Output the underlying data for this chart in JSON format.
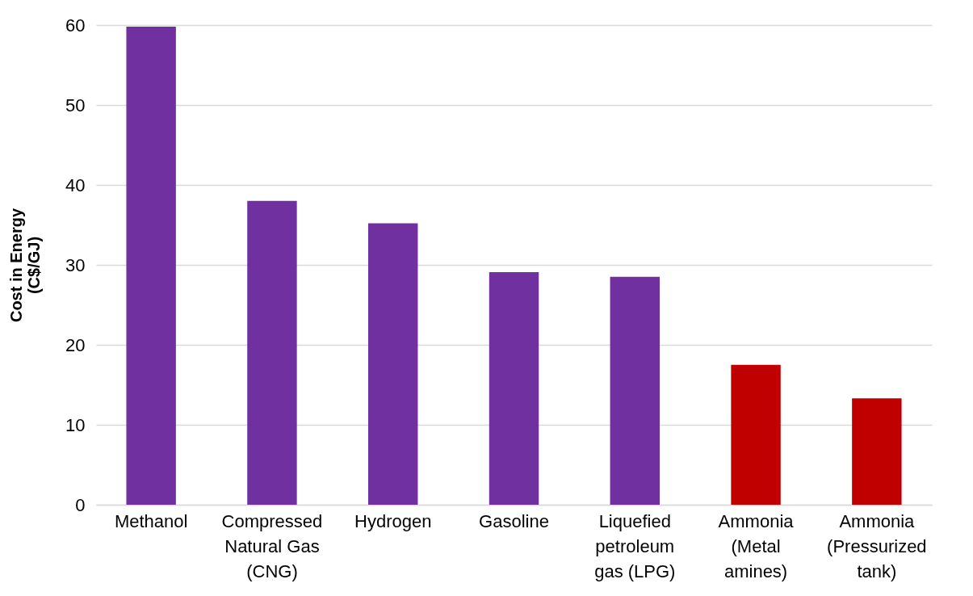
{
  "chart_data": {
    "type": "bar",
    "ylabel": "Cost in Energy (C$/GJ)",
    "categories": [
      "Methanol",
      "Compressed Natural Gas (CNG)",
      "Hydrogen",
      "Gasoline",
      "Liquefied petroleum gas (LPG)",
      "Ammonia (Metal amines)",
      "Ammonia (Pressurized tank)"
    ],
    "values": [
      59.8,
      38,
      35.2,
      29.1,
      28.5,
      17.5,
      13.3
    ],
    "colors": [
      "#7030a0",
      "#7030a0",
      "#7030a0",
      "#7030a0",
      "#7030a0",
      "#c00000",
      "#c00000"
    ],
    "ylim": [
      0,
      60
    ],
    "yticks": [
      0,
      10,
      20,
      30,
      40,
      50,
      60
    ],
    "grid": "y"
  }
}
